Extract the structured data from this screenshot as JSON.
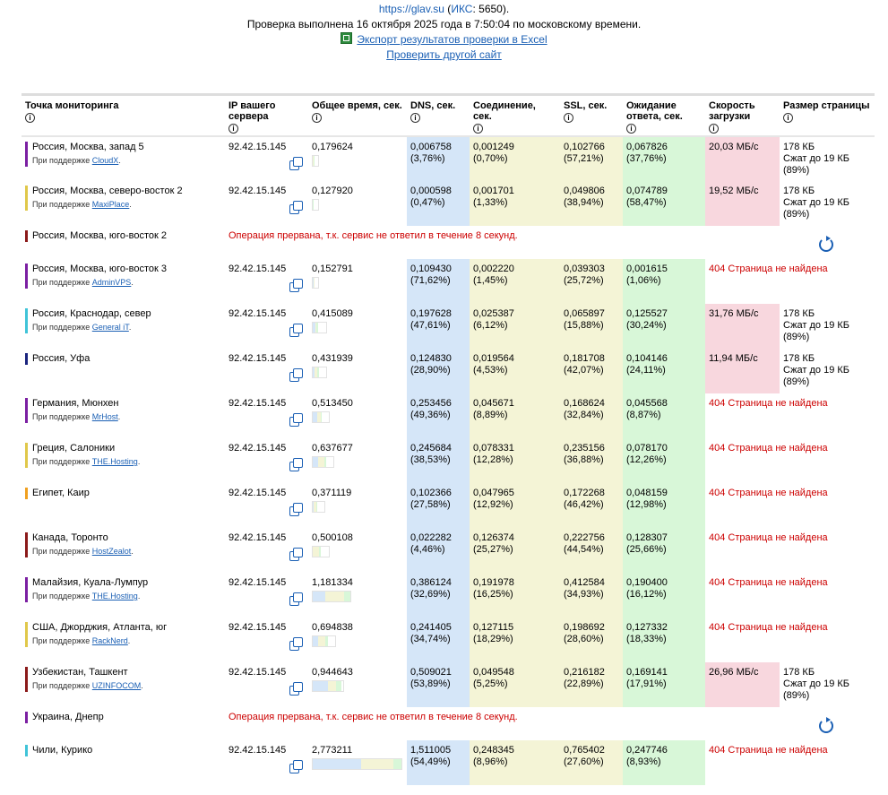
{
  "header": {
    "site": "https://glav.su",
    "iks_label": "ИКС",
    "iks_value": "5650",
    "checked_text": "Проверка выполнена 16 октября 2025 года в 7:50:04 по московскому времени.",
    "export_link": "Экспорт результатов проверки в Excel",
    "check_other_link": "Проверить другой сайт"
  },
  "columns": [
    "Точка мониторинга",
    "IP вашего сервера",
    "Общее время, сек.",
    "DNS, сек.",
    "Соединение, сек.",
    "SSL, сек.",
    "Ожидание ответа, сек.",
    "Скорость загрузки",
    "Размер страницы"
  ],
  "support_label": "При поддержке",
  "rows": [
    {
      "loc": "Россия, Москва, запад 5",
      "provider": "CloudX",
      "color": "#7b1fa2",
      "ip": "92.42.15.145",
      "total": "0,179624",
      "dns": "0,006758",
      "dns_p": "(3,76%)",
      "conn": "0,001249",
      "conn_p": "(0,70%)",
      "ssl": "0,102766",
      "ssl_p": "(57,21%)",
      "wait": "0,067826",
      "wait_p": "(37,76%)",
      "speed": "20,03 МБ/с",
      "size": "178 КБ",
      "size2": "Сжат до 19 КБ",
      "size3": "(89%)"
    },
    {
      "loc": "Россия, Москва, северо-восток 2",
      "provider": "MaxiPlace",
      "color": "#e0c84a",
      "ip": "92.42.15.145",
      "total": "0,127920",
      "dns": "0,000598",
      "dns_p": "(0,47%)",
      "conn": "0,001701",
      "conn_p": "(1,33%)",
      "ssl": "0,049806",
      "ssl_p": "(38,94%)",
      "wait": "0,074789",
      "wait_p": "(58,47%)",
      "speed": "19,52 МБ/с",
      "size": "178 КБ",
      "size2": "Сжат до 19 КБ",
      "size3": "(89%)"
    },
    {
      "loc": "Россия, Москва, юго-восток 2",
      "color": "#8b1a1a",
      "fail": "Операция прервана, т.к. сервис не ответил в течение 8 секунд."
    },
    {
      "loc": "Россия, Москва, юго-восток 3",
      "provider": "AdminVPS",
      "color": "#7b1fa2",
      "ip": "92.42.15.145",
      "total": "0,152791",
      "dns": "0,109430",
      "dns_p": "(71,62%)",
      "conn": "0,002220",
      "conn_p": "(1,45%)",
      "ssl": "0,039303",
      "ssl_p": "(25,72%)",
      "wait": "0,001615",
      "wait_p": "(1,06%)",
      "error": "404 Страница не найдена"
    },
    {
      "loc": "Россия, Краснодар, север",
      "provider": "General iT",
      "color": "#40c4d8",
      "ip": "92.42.15.145",
      "total": "0,415089",
      "dns": "0,197628",
      "dns_p": "(47,61%)",
      "conn": "0,025387",
      "conn_p": "(6,12%)",
      "ssl": "0,065897",
      "ssl_p": "(15,88%)",
      "wait": "0,125527",
      "wait_p": "(30,24%)",
      "speed": "31,76 МБ/с",
      "size": "178 КБ",
      "size2": "Сжат до 19 КБ",
      "size3": "(89%)"
    },
    {
      "loc": "Россия, Уфа",
      "color": "#1a237e",
      "ip": "92.42.15.145",
      "total": "0,431939",
      "dns": "0,124830",
      "dns_p": "(28,90%)",
      "conn": "0,019564",
      "conn_p": "(4,53%)",
      "ssl": "0,181708",
      "ssl_p": "(42,07%)",
      "wait": "0,104146",
      "wait_p": "(24,11%)",
      "speed": "11,94 МБ/с",
      "size": "178 КБ",
      "size2": "Сжат до 19 КБ",
      "size3": "(89%)"
    },
    {
      "loc": "Германия, Мюнхен",
      "provider": "MrHost",
      "color": "#7b1fa2",
      "ip": "92.42.15.145",
      "total": "0,513450",
      "dns": "0,253456",
      "dns_p": "(49,36%)",
      "conn": "0,045671",
      "conn_p": "(8,89%)",
      "ssl": "0,168624",
      "ssl_p": "(32,84%)",
      "wait": "0,045568",
      "wait_p": "(8,87%)",
      "error": "404 Страница не найдена"
    },
    {
      "loc": "Греция, Салоники",
      "provider": "THE.Hosting",
      "color": "#e0c84a",
      "ip": "92.42.15.145",
      "total": "0,637677",
      "dns": "0,245684",
      "dns_p": "(38,53%)",
      "conn": "0,078331",
      "conn_p": "(12,28%)",
      "ssl": "0,235156",
      "ssl_p": "(36,88%)",
      "wait": "0,078170",
      "wait_p": "(12,26%)",
      "error": "404 Страница не найдена"
    },
    {
      "loc": "Египет, Каир",
      "color": "#f0a020",
      "ip": "92.42.15.145",
      "total": "0,371119",
      "dns": "0,102366",
      "dns_p": "(27,58%)",
      "conn": "0,047965",
      "conn_p": "(12,92%)",
      "ssl": "0,172268",
      "ssl_p": "(46,42%)",
      "wait": "0,048159",
      "wait_p": "(12,98%)",
      "error": "404 Страница не найдена"
    },
    {
      "loc": "Канада, Торонто",
      "provider": "HostZealot",
      "color": "#8b1a1a",
      "ip": "92.42.15.145",
      "total": "0,500108",
      "dns": "0,022282",
      "dns_p": "(4,46%)",
      "conn": "0,126374",
      "conn_p": "(25,27%)",
      "ssl": "0,222756",
      "ssl_p": "(44,54%)",
      "wait": "0,128307",
      "wait_p": "(25,66%)",
      "error": "404 Страница не найдена"
    },
    {
      "loc": "Малайзия, Куала-Лумпур",
      "provider": "THE.Hosting",
      "color": "#7b1fa2",
      "ip": "92.42.15.145",
      "total": "1,181334",
      "dns": "0,386124",
      "dns_p": "(32,69%)",
      "conn": "0,191978",
      "conn_p": "(16,25%)",
      "ssl": "0,412584",
      "ssl_p": "(34,93%)",
      "wait": "0,190400",
      "wait_p": "(16,12%)",
      "error": "404 Страница не найдена"
    },
    {
      "loc": "США, Джорджия, Атланта, юг",
      "provider": "RackNerd",
      "color": "#e0c84a",
      "ip": "92.42.15.145",
      "total": "0,694838",
      "dns": "0,241405",
      "dns_p": "(34,74%)",
      "conn": "0,127115",
      "conn_p": "(18,29%)",
      "ssl": "0,198692",
      "ssl_p": "(28,60%)",
      "wait": "0,127332",
      "wait_p": "(18,33%)",
      "error": "404 Страница не найдена"
    },
    {
      "loc": "Узбекистан, Ташкент",
      "provider": "UZINFOCOM",
      "color": "#8b1a1a",
      "ip": "92.42.15.145",
      "total": "0,944643",
      "dns": "0,509021",
      "dns_p": "(53,89%)",
      "conn": "0,049548",
      "conn_p": "(5,25%)",
      "ssl": "0,216182",
      "ssl_p": "(22,89%)",
      "wait": "0,169141",
      "wait_p": "(17,91%)",
      "speed": "26,96 МБ/с",
      "size": "178 КБ",
      "size2": "Сжат до 19 КБ",
      "size3": "(89%)"
    },
    {
      "loc": "Украина, Днепр",
      "color": "#7b1fa2",
      "fail": "Операция прервана, т.к. сервис не ответил в течение 8 секунд."
    },
    {
      "loc": "Чили, Курико",
      "color": "#40c4d8",
      "ip": "92.42.15.145",
      "total": "2,773211",
      "dns": "1,511005",
      "dns_p": "(54,49%)",
      "conn": "0,248345",
      "conn_p": "(8,96%)",
      "ssl": "0,765402",
      "ssl_p": "(27,60%)",
      "wait": "0,247746",
      "wait_p": "(8,93%)",
      "error": "404 Страница не найдена"
    }
  ]
}
